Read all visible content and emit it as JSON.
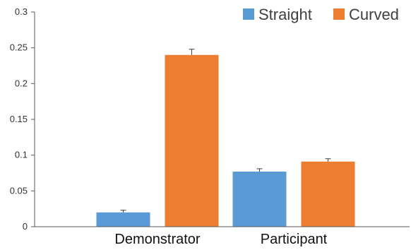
{
  "chart_data": {
    "type": "bar",
    "title": "",
    "xlabel": "",
    "ylabel": "",
    "categories": [
      "Demonstrator",
      "Participant"
    ],
    "series": [
      {
        "name": "Straight",
        "color": "#5b9bd5",
        "values": [
          0.02,
          0.077
        ],
        "errors": [
          0.003,
          0.004
        ]
      },
      {
        "name": "Curved",
        "color": "#ed7d31",
        "values": [
          0.24,
          0.091
        ],
        "errors": [
          0.008,
          0.004
        ]
      }
    ],
    "ylim": [
      0,
      0.3
    ],
    "yticks": [
      "0",
      "0.05",
      "0.1",
      "0.15",
      "0.2",
      "0.25",
      "0.3"
    ],
    "grid": false,
    "legend_position": "top-right"
  }
}
